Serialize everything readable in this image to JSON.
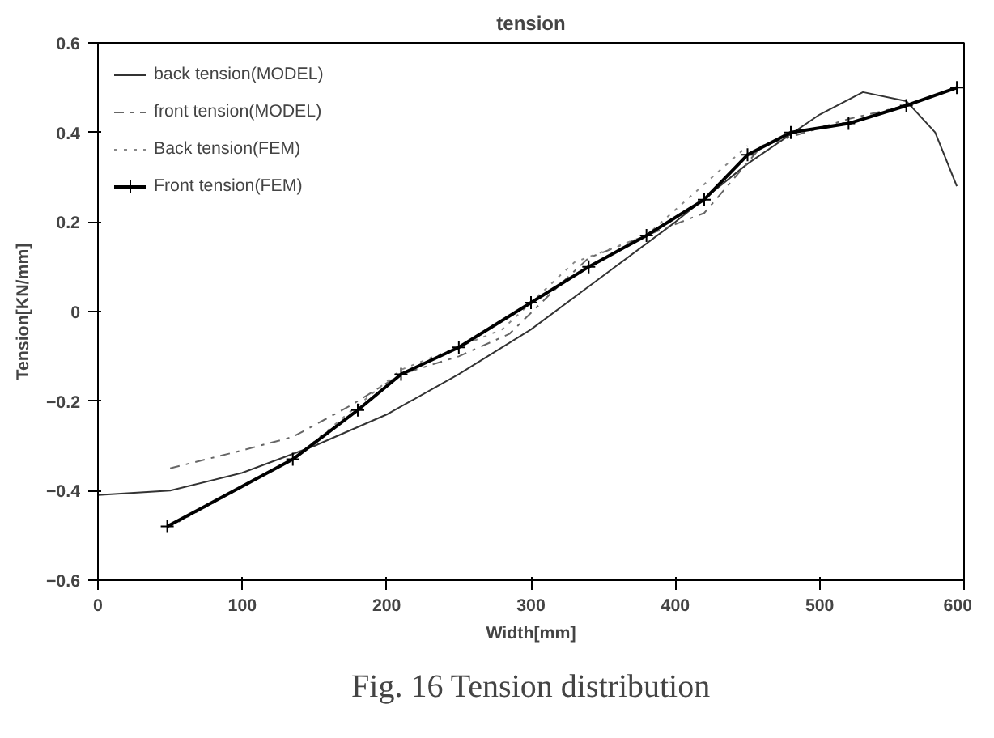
{
  "chart_data": {
    "type": "line",
    "title": "tension",
    "xlabel": "Width[mm]",
    "ylabel": "Tension[KN/mm]",
    "xlim": [
      0,
      600
    ],
    "ylim": [
      -0.6,
      0.6
    ],
    "xticks": [
      0,
      100,
      200,
      300,
      400,
      500,
      600
    ],
    "yticks": [
      -0.6,
      -0.4,
      -0.2,
      0,
      0.2,
      0.4,
      0.6
    ],
    "grid": false,
    "legend": "top left",
    "annotations": [
      "Fig. 16 Tension distribution"
    ],
    "series": [
      {
        "name": "back tension(MODEL)",
        "color": "#333333",
        "line_style": "solid",
        "marker": "none",
        "x": [
          0,
          50,
          100,
          150,
          200,
          250,
          300,
          350,
          400,
          450,
          500,
          530,
          560,
          580,
          595
        ],
        "values": [
          -0.41,
          -0.4,
          -0.36,
          -0.3,
          -0.23,
          -0.14,
          -0.04,
          0.08,
          0.2,
          0.33,
          0.44,
          0.49,
          0.47,
          0.4,
          0.28
        ]
      },
      {
        "name": "front tension(MODEL)",
        "color": "#666666",
        "line_style": "dashed",
        "marker": "none",
        "x": [
          50,
          100,
          135,
          175,
          210,
          250,
          285,
          320,
          340,
          380,
          420,
          460,
          520,
          560,
          595
        ],
        "values": [
          -0.35,
          -0.31,
          -0.28,
          -0.21,
          -0.14,
          -0.1,
          -0.05,
          0.06,
          0.12,
          0.17,
          0.22,
          0.37,
          0.43,
          0.46,
          0.5
        ]
      },
      {
        "name": "Back tension(FEM)",
        "color": "#888888",
        "line_style": "dotted",
        "marker": "none",
        "x": [
          50,
          135,
          210,
          280,
          330,
          380,
          450
        ],
        "values": [
          -0.48,
          -0.33,
          -0.13,
          -0.04,
          0.11,
          0.17,
          0.37
        ]
      },
      {
        "name": "Front tension(FEM)",
        "color": "#000000",
        "line_style": "solid",
        "marker": "cross",
        "x": [
          48,
          135,
          180,
          210,
          250,
          300,
          340,
          380,
          420,
          450,
          480,
          520,
          560,
          595
        ],
        "values": [
          -0.48,
          -0.33,
          -0.22,
          -0.14,
          -0.08,
          0.02,
          0.1,
          0.17,
          0.25,
          0.35,
          0.4,
          0.42,
          0.46,
          0.5
        ]
      }
    ]
  }
}
